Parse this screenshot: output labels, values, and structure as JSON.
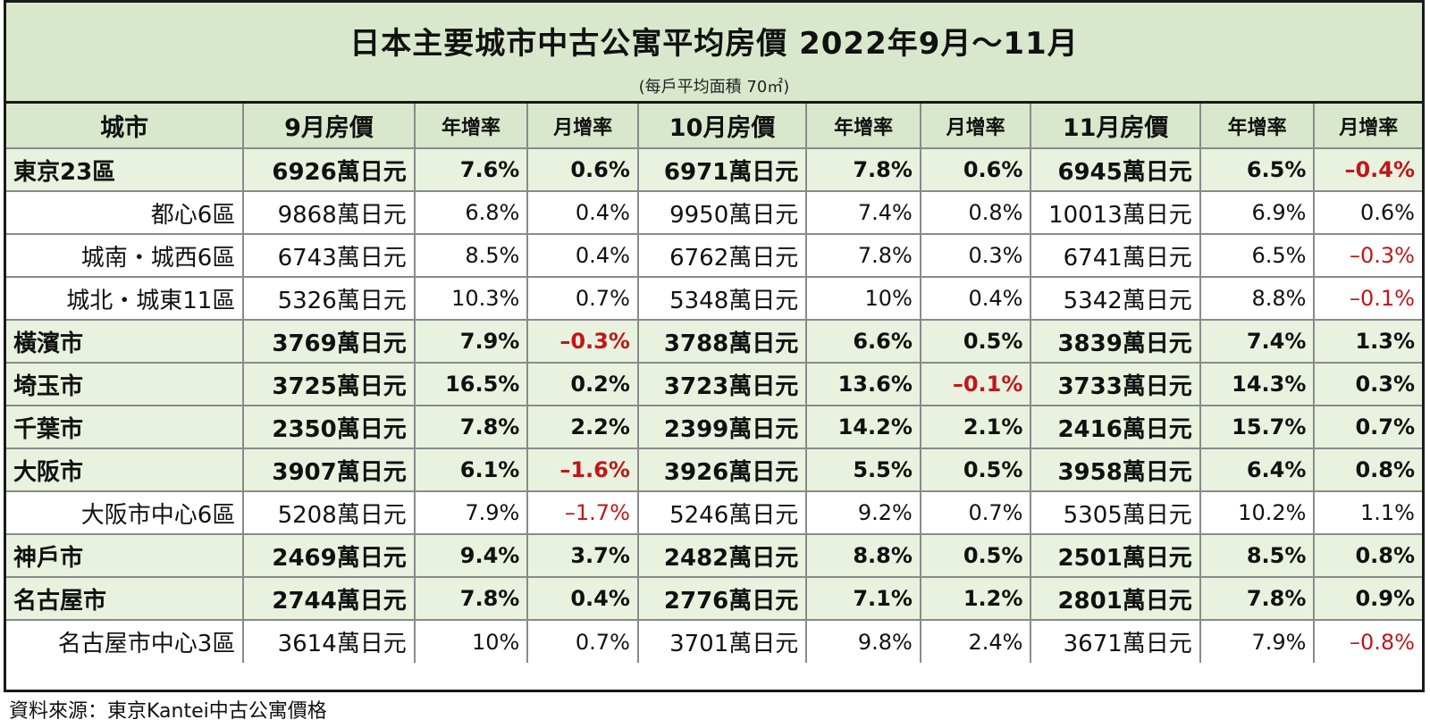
{
  "chart_data": {
    "type": "table",
    "title": "日本主要城市中古公寓平均房價 2022年9月～11月",
    "subtitle": "(每戶平均面積 70㎡)",
    "columns": [
      "城市",
      "9月房價",
      "年增率",
      "月增率",
      "10月房價",
      "年增率",
      "月增率",
      "11月房價",
      "年增率",
      "月增率"
    ],
    "rows": [
      {
        "kind": "main",
        "cells": [
          "東京23區",
          "6926萬日元",
          "7.6%",
          "0.6%",
          "6971萬日元",
          "7.8%",
          "0.6%",
          "6945萬日元",
          "6.5%",
          "–0.4%"
        ]
      },
      {
        "kind": "sub",
        "cells": [
          "都心6區",
          "9868萬日元",
          "6.8%",
          "0.4%",
          "9950萬日元",
          "7.4%",
          "0.8%",
          "10013萬日元",
          "6.9%",
          "0.6%"
        ]
      },
      {
        "kind": "sub",
        "cells": [
          "城南・城西6區",
          "6743萬日元",
          "8.5%",
          "0.4%",
          "6762萬日元",
          "7.8%",
          "0.3%",
          "6741萬日元",
          "6.5%",
          "–0.3%"
        ]
      },
      {
        "kind": "sub",
        "cells": [
          "城北・城東11區",
          "5326萬日元",
          "10.3%",
          "0.7%",
          "5348萬日元",
          "10%",
          "0.4%",
          "5342萬日元",
          "8.8%",
          "–0.1%"
        ]
      },
      {
        "kind": "main",
        "cells": [
          "橫濱市",
          "3769萬日元",
          "7.9%",
          "–0.3%",
          "3788萬日元",
          "6.6%",
          "0.5%",
          "3839萬日元",
          "7.4%",
          "1.3%"
        ]
      },
      {
        "kind": "main",
        "cells": [
          "埼玉市",
          "3725萬日元",
          "16.5%",
          "0.2%",
          "3723萬日元",
          "13.6%",
          "–0.1%",
          "3733萬日元",
          "14.3%",
          "0.3%"
        ]
      },
      {
        "kind": "main",
        "cells": [
          "千葉市",
          "2350萬日元",
          "7.8%",
          "2.2%",
          "2399萬日元",
          "14.2%",
          "2.1%",
          "2416萬日元",
          "15.7%",
          "0.7%"
        ]
      },
      {
        "kind": "main",
        "cells": [
          "大阪市",
          "3907萬日元",
          "6.1%",
          "–1.6%",
          "3926萬日元",
          "5.5%",
          "0.5%",
          "3958萬日元",
          "6.4%",
          "0.8%"
        ]
      },
      {
        "kind": "sub",
        "cells": [
          "大阪市中心6區",
          "5208萬日元",
          "7.9%",
          "–1.7%",
          "5246萬日元",
          "9.2%",
          "0.7%",
          "5305萬日元",
          "10.2%",
          "1.1%"
        ]
      },
      {
        "kind": "main",
        "cells": [
          "神戶市",
          "2469萬日元",
          "9.4%",
          "3.7%",
          "2482萬日元",
          "8.8%",
          "0.5%",
          "2501萬日元",
          "8.5%",
          "0.8%"
        ]
      },
      {
        "kind": "main",
        "cells": [
          "名古屋市",
          "2744萬日元",
          "7.8%",
          "0.4%",
          "2776萬日元",
          "7.1%",
          "1.2%",
          "2801萬日元",
          "7.8%",
          "0.9%"
        ]
      },
      {
        "kind": "sub",
        "cells": [
          "名古屋市中心3區",
          "3614萬日元",
          "10%",
          "0.7%",
          "3701萬日元",
          "9.8%",
          "2.4%",
          "3671萬日元",
          "7.9%",
          "–0.8%"
        ]
      }
    ],
    "negative_color": "#c0171a",
    "header_color": "#d9e8cc",
    "main_row_color": "#e8f2df"
  },
  "footer": {
    "source": "資料來源：東京Kantei中古公寓價格"
  }
}
